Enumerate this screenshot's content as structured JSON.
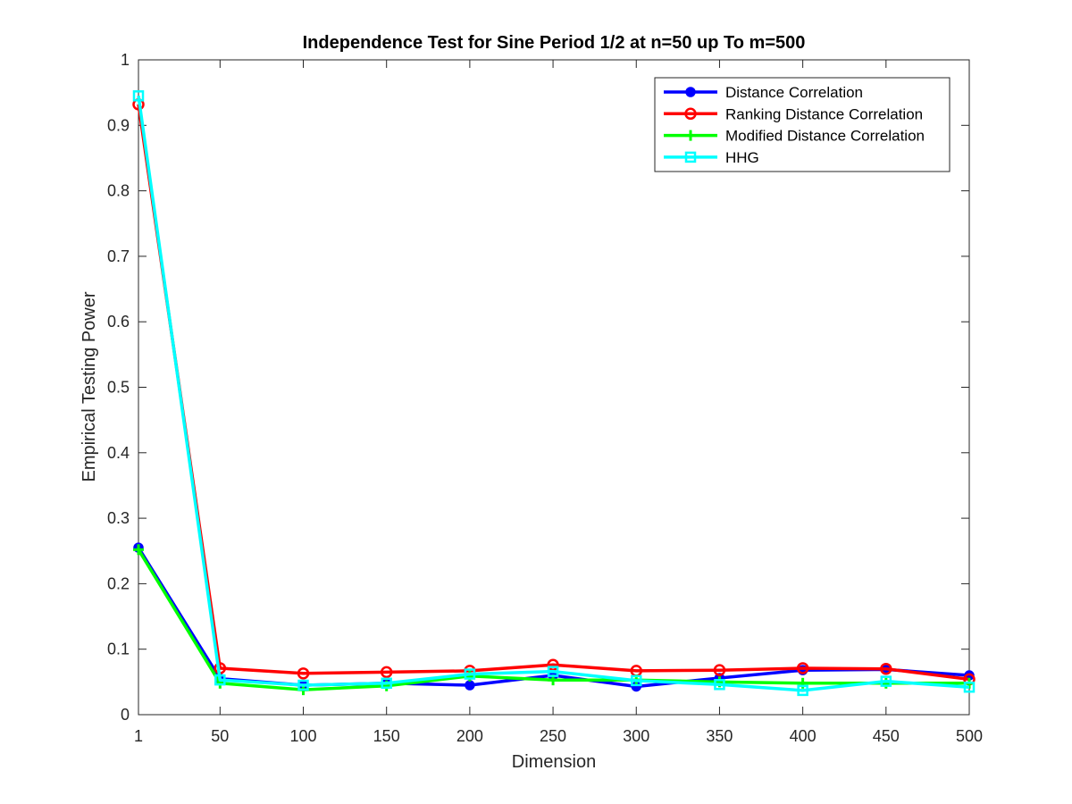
{
  "chart_data": {
    "type": "line",
    "title": "Independence Test for Sine Period 1/2 at n=50 up To m=500",
    "xlabel": "Dimension",
    "ylabel": "Empirical Testing Power",
    "xlim": [
      1,
      500
    ],
    "ylim": [
      0,
      1
    ],
    "x": [
      1,
      50,
      100,
      150,
      200,
      250,
      300,
      350,
      400,
      450,
      500
    ],
    "xticks": [
      "1",
      "50",
      "100",
      "150",
      "200",
      "250",
      "300",
      "350",
      "400",
      "450",
      "500"
    ],
    "yticks": [
      "0",
      "0.1",
      "0.2",
      "0.3",
      "0.4",
      "0.5",
      "0.6",
      "0.7",
      "0.8",
      "0.9",
      "1"
    ],
    "grid": false,
    "legend_position": "top-right",
    "series": [
      {
        "name": "Distance Correlation",
        "color": "#0000ff",
        "marker": "filled-circle",
        "values": [
          0.255,
          0.055,
          0.045,
          0.048,
          0.045,
          0.06,
          0.043,
          0.056,
          0.068,
          0.069,
          0.06
        ]
      },
      {
        "name": "Ranking Distance Correlation",
        "color": "#ff0000",
        "marker": "open-circle",
        "values": [
          0.932,
          0.071,
          0.063,
          0.065,
          0.067,
          0.076,
          0.067,
          0.068,
          0.071,
          0.07,
          0.054
        ]
      },
      {
        "name": "Modified Distance Correlation",
        "color": "#00ff00",
        "marker": "plus",
        "values": [
          0.252,
          0.048,
          0.038,
          0.044,
          0.059,
          0.053,
          0.053,
          0.05,
          0.048,
          0.048,
          0.048
        ]
      },
      {
        "name": "HHG",
        "color": "#00ffff",
        "marker": "square",
        "values": [
          0.945,
          0.053,
          0.045,
          0.048,
          0.062,
          0.066,
          0.052,
          0.046,
          0.037,
          0.051,
          0.042
        ]
      }
    ]
  }
}
